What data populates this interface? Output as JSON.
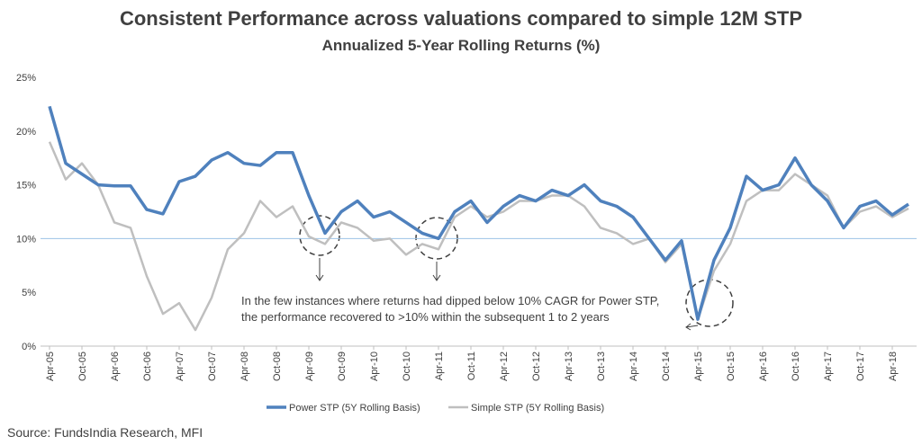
{
  "chart_data": {
    "type": "line",
    "title": "Consistent Performance across valuations compared to simple 12M STP",
    "subtitle": "Annualized 5-Year Rolling Returns (%)",
    "categories": [
      "Apr-05",
      null,
      "Oct-05",
      null,
      "Apr-06",
      null,
      "Oct-06",
      null,
      "Apr-07",
      null,
      "Oct-07",
      null,
      "Apr-08",
      null,
      "Oct-08",
      null,
      "Apr-09",
      null,
      "Oct-09",
      null,
      "Apr-10",
      null,
      "Oct-10",
      null,
      "Apr-11",
      null,
      "Oct-11",
      null,
      "Apr-12",
      null,
      "Oct-12",
      null,
      "Apr-13",
      null,
      "Oct-13",
      null,
      "Apr-14",
      null,
      "Oct-14",
      null,
      "Apr-15",
      null,
      "Oct-15",
      null,
      "Apr-16",
      null,
      "Oct-16",
      null,
      "Apr-17",
      null,
      "Oct-17",
      null,
      "Apr-18",
      null
    ],
    "series": [
      {
        "name": "Power STP  (5Y Rolling Basis)",
        "color": "#4f81bd",
        "values": [
          22.3,
          17,
          16,
          15,
          14.9,
          14.9,
          12.7,
          12.3,
          15.3,
          15.8,
          17.3,
          18,
          17,
          16.8,
          18,
          18,
          14,
          10.5,
          12.5,
          13.5,
          12,
          12.5,
          11.5,
          10.5,
          10,
          12.5,
          13.5,
          11.5,
          13,
          14,
          13.5,
          14.5,
          14,
          15,
          13.5,
          13,
          12,
          10,
          8,
          9.8,
          2.5,
          8,
          11,
          15.8,
          14.5,
          15,
          17.5,
          15,
          13.5,
          11,
          13,
          13.5,
          12.2,
          13.2
        ]
      },
      {
        "name": "Simple STP (5Y Rolling Basis)",
        "color": "#bfbfbf",
        "values": [
          19,
          15.5,
          17,
          15,
          11.5,
          11,
          6.5,
          3,
          4,
          1.5,
          4.5,
          9,
          10.5,
          13.5,
          12,
          13,
          10.2,
          9.5,
          11.5,
          11,
          9.8,
          10,
          8.5,
          9.5,
          9,
          12,
          13,
          12,
          12.5,
          13.5,
          13.5,
          14,
          14,
          13,
          11,
          10.5,
          9.5,
          10,
          7.8,
          9.5,
          2.5,
          7,
          9.5,
          13.5,
          14.5,
          14.5,
          16,
          15,
          14,
          11,
          12.5,
          13,
          12,
          12.8
        ]
      }
    ],
    "ylim": [
      0,
      25
    ],
    "yticks": [
      {
        "value": 0,
        "label": "0%"
      },
      {
        "value": 5,
        "label": "5%"
      },
      {
        "value": 10,
        "label": "10%"
      },
      {
        "value": 15,
        "label": "15%"
      },
      {
        "value": 20,
        "label": "20%"
      },
      {
        "value": 25,
        "label": "25%"
      }
    ],
    "reference_line": 10,
    "annotation": [
      "In the few instances where returns had dipped below 10% CAGR for Power STP,",
      "the performance recovered to >10% within the subsequent 1 to 2 years"
    ],
    "source": "Source: FundsIndia Research, MFI"
  }
}
